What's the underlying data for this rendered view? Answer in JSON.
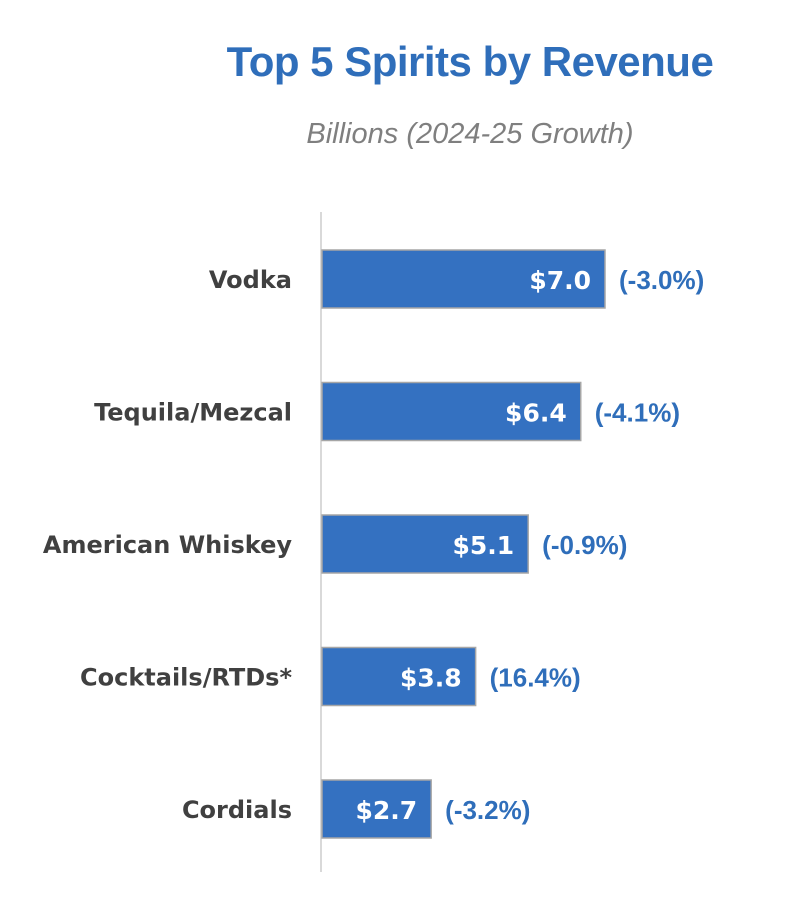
{
  "chart_data": {
    "type": "bar",
    "orientation": "horizontal",
    "title": "Top 5 Spirits by Revenue",
    "subtitle": "Billions (2024-25 Growth)",
    "categories": [
      "Vodka",
      "Tequila/Mezcal",
      "American Whiskey",
      "Cocktails/RTDs*",
      "Cordials"
    ],
    "values": [
      7.0,
      6.4,
      5.1,
      3.8,
      2.7
    ],
    "value_labels": [
      "$7.0",
      "$6.4",
      "$5.1",
      "$3.8",
      "$2.7"
    ],
    "growth_labels": [
      "(-3.0%)",
      "(-4.1%)",
      "(-0.9%)",
      "(16.4%)",
      "(-3.2%)"
    ],
    "xlim": [
      0,
      7.0
    ],
    "grid": false,
    "bar_color": "#3471c1",
    "bar_border_color": "#a6a6a6",
    "label_color": "#2f6eba"
  }
}
